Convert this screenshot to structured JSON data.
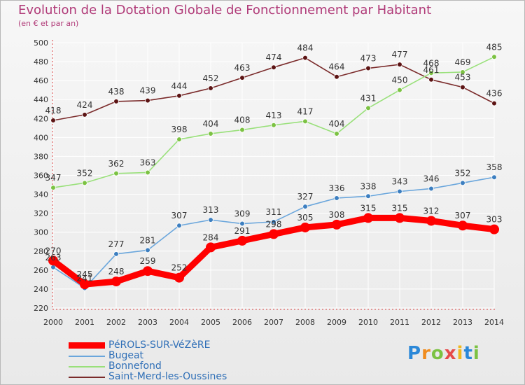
{
  "title": "Evolution de la Dotation Globale de Fonctionnement par Habitant",
  "subtitle": "(en € et par an)",
  "logo_text": "Proxiti",
  "chart_data": {
    "type": "line",
    "title": "Evolution de la Dotation Globale de Fonctionnement par Habitant",
    "subtitle": "(en € et par an)",
    "xlabel": "",
    "ylabel": "",
    "x": [
      "2000",
      "2001",
      "2002",
      "2003",
      "2004",
      "2005",
      "2006",
      "2007",
      "2008",
      "2009",
      "2010",
      "2011",
      "2012",
      "2013",
      "2014"
    ],
    "ylim": [
      220,
      500
    ],
    "yticks": [
      220,
      240,
      260,
      280,
      300,
      320,
      340,
      360,
      380,
      400,
      420,
      440,
      460,
      480,
      500
    ],
    "grid": "horizontal",
    "legend_position": "bottom-left",
    "series": [
      {
        "name": "Saint-Merd-les-Oussines",
        "color": "#7a2a2a",
        "marker": "#5c1414",
        "values": [
          418,
          424,
          438,
          439,
          444,
          452,
          463,
          474,
          484,
          464,
          473,
          477,
          461,
          453,
          436
        ]
      },
      {
        "name": "Bonnefond",
        "color": "#99e07a",
        "marker": "#7cc243",
        "values": [
          347,
          352,
          362,
          363,
          398,
          404,
          408,
          413,
          417,
          404,
          431,
          450,
          468,
          469,
          485
        ]
      },
      {
        "name": "Bugeat",
        "color": "#6aa6dc",
        "marker": "#3d7fc0",
        "values": [
          263,
          241,
          277,
          281,
          307,
          313,
          309,
          311,
          327,
          336,
          338,
          343,
          346,
          352,
          358
        ]
      },
      {
        "name": "PéROLS-SUR-VéZèRE",
        "color": "#ff0000",
        "marker": "#ff0000",
        "values": [
          270,
          245,
          248,
          259,
          252,
          284,
          291,
          298,
          305,
          308,
          315,
          315,
          312,
          307,
          303
        ]
      }
    ],
    "legend_order": [
      "PéROLS-SUR-VéZèRE",
      "Bugeat",
      "Bonnefond",
      "Saint-Merd-les-Oussines"
    ]
  }
}
